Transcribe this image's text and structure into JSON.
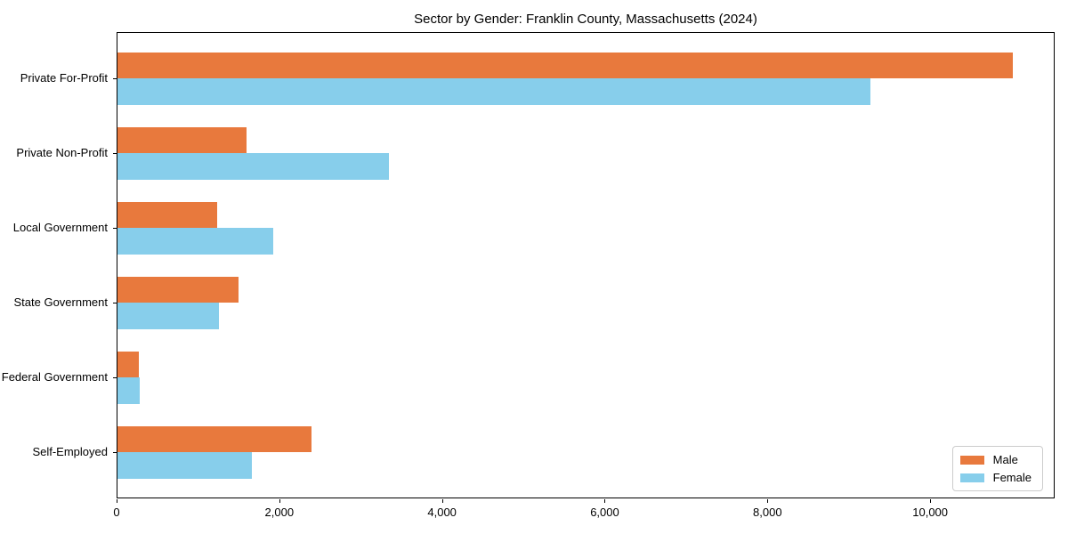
{
  "title": "Sector by Gender: Franklin County, Massachusetts (2024)",
  "chart_data": {
    "type": "bar",
    "orientation": "horizontal",
    "title": "Sector by Gender: Franklin County, Massachusetts (2024)",
    "xlabel": "",
    "ylabel": "",
    "categories": [
      "Private For-Profit",
      "Private Non-Profit",
      "Local Government",
      "State Government",
      "Federal Government",
      "Self-Employed"
    ],
    "series": [
      {
        "name": "Male",
        "color": "#E8793D",
        "values": [
          11000,
          1590,
          1230,
          1490,
          260,
          2380
        ]
      },
      {
        "name": "Female",
        "color": "#87CEEB",
        "values": [
          9260,
          3340,
          1910,
          1250,
          270,
          1650
        ]
      }
    ],
    "xlim": [
      0,
      11530
    ],
    "xticks": [
      0,
      2000,
      4000,
      6000,
      8000,
      10000
    ],
    "xtick_labels": [
      "0",
      "2,000",
      "4,000",
      "6,000",
      "8,000",
      "10,000"
    ],
    "grid": false,
    "legend_position": "lower right",
    "legend_entries": [
      "Male",
      "Female"
    ]
  }
}
